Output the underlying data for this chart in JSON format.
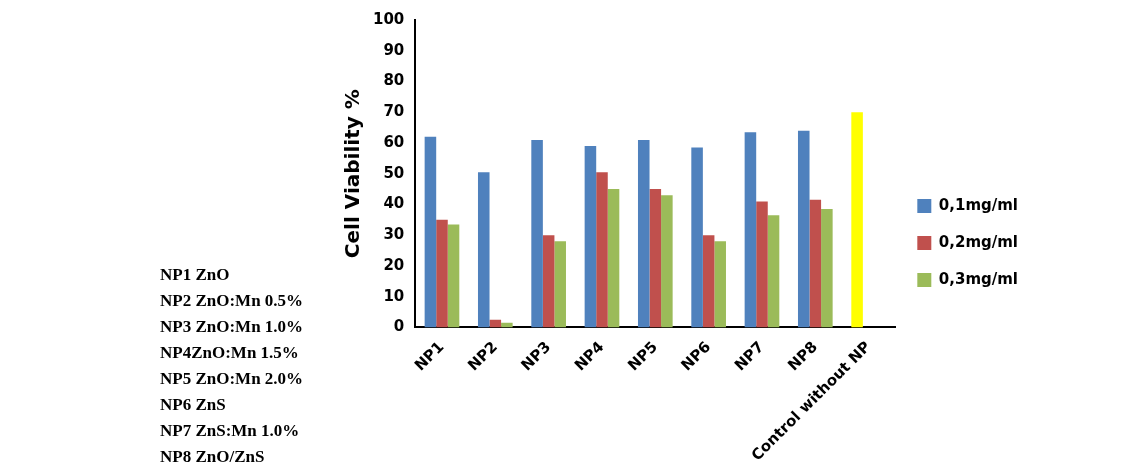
{
  "chart_data": {
    "type": "bar",
    "ylabel": "Cell Viability %",
    "categories": [
      "NP1",
      "NP2",
      "NP3",
      "NP4",
      "NP5",
      "NP6",
      "NP7",
      "NP8",
      "Control without NP"
    ],
    "series": [
      {
        "name": "0,1mg/ml",
        "color": "#4f81bd",
        "colors": [
          "#4f81bd",
          "#4f81bd",
          "#4f81bd",
          "#4f81bd",
          "#4f81bd",
          "#4f81bd",
          "#4f81bd",
          "#4f81bd",
          "#ffff00"
        ],
        "values": [
          62,
          50.5,
          61,
          59,
          61,
          58.5,
          63.5,
          64,
          70
        ]
      },
      {
        "name": "0,2mg/ml",
        "color": "#c0504d",
        "values": [
          35,
          2.5,
          30,
          50.5,
          45,
          30,
          41,
          41.5,
          null
        ]
      },
      {
        "name": "0,3mg/ml",
        "color": "#9bbb59",
        "values": [
          33.5,
          1.5,
          28,
          45,
          43,
          28,
          36.5,
          38.5,
          null
        ]
      }
    ],
    "ylim": [
      0,
      100
    ],
    "yticks": [
      0,
      10,
      20,
      30,
      40,
      50,
      60,
      70,
      80,
      90,
      100
    ],
    "grid": false,
    "legend": "right",
    "annotations": [
      "NP1 ZnO",
      "NP2 ZnO:Mn 0.5%",
      "NP3 ZnO:Mn 1.0%",
      "NP4ZnO:Mn 1.5%",
      "NP5 ZnO:Mn 2.0%",
      "NP6 ZnS",
      "NP7 ZnS:Mn 1.0%",
      "NP8 ZnO/ZnS"
    ]
  }
}
